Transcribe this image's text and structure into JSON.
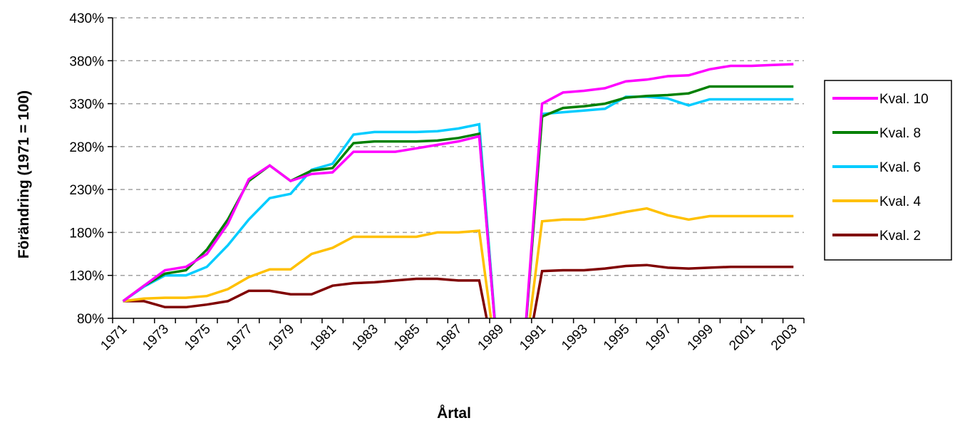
{
  "chart_data": {
    "type": "line",
    "xlabel": "Årtal",
    "ylabel": "Förändring (1971 = 100)",
    "ylim": [
      80,
      430
    ],
    "yticks": [
      "80%",
      "130%",
      "180%",
      "230%",
      "280%",
      "330%",
      "380%",
      "430%"
    ],
    "grid": "horizontal dashed",
    "legend": "right",
    "x": [
      1971,
      1972,
      1973,
      1974,
      1975,
      1976,
      1977,
      1978,
      1979,
      1980,
      1981,
      1982,
      1983,
      1984,
      1985,
      1986,
      1987,
      1988,
      1989,
      1990,
      1991,
      1992,
      1993,
      1994,
      1995,
      1996,
      1997,
      1998,
      1999,
      2000,
      2001,
      2002,
      2003
    ],
    "xticklabels": [
      "1971",
      "1973",
      "1975",
      "1977",
      "1979",
      "1981",
      "1983",
      "1985",
      "1987",
      "1989",
      "1991",
      "1993",
      "1995",
      "1997",
      "1999",
      "2001",
      "2003"
    ],
    "series": [
      {
        "name": "Kval. 10",
        "color": "#ff00ff",
        "values": [
          100,
          118,
          136,
          140,
          155,
          190,
          242,
          258,
          240,
          248,
          250,
          274,
          274,
          274,
          278,
          282,
          286,
          292,
          0,
          0,
          330,
          343,
          345,
          348,
          356,
          358,
          362,
          363,
          370,
          374,
          374,
          375,
          376
        ]
      },
      {
        "name": "Kval. 8",
        "color": "#008000",
        "values": [
          100,
          118,
          132,
          136,
          160,
          195,
          240,
          258,
          240,
          252,
          255,
          284,
          286,
          286,
          286,
          287,
          290,
          295,
          0,
          0,
          315,
          325,
          327,
          330,
          337,
          339,
          340,
          342,
          350,
          350,
          350,
          350,
          350
        ]
      },
      {
        "name": "Kval. 6",
        "color": "#00ccff",
        "values": [
          100,
          117,
          130,
          130,
          140,
          165,
          195,
          220,
          225,
          253,
          260,
          294,
          297,
          297,
          297,
          298,
          301,
          306,
          0,
          0,
          318,
          320,
          322,
          324,
          338,
          338,
          336,
          328,
          335,
          335,
          335,
          335,
          335
        ]
      },
      {
        "name": "Kval. 4",
        "color": "#ffc000",
        "values": [
          100,
          103,
          104,
          104,
          106,
          114,
          128,
          137,
          137,
          155,
          162,
          175,
          175,
          175,
          175,
          180,
          180,
          182,
          0,
          0,
          193,
          195,
          195,
          199,
          204,
          208,
          200,
          195,
          199,
          199,
          199,
          199,
          199
        ]
      },
      {
        "name": "Kval. 2",
        "color": "#800000",
        "values": [
          100,
          100,
          93,
          93,
          96,
          100,
          112,
          112,
          108,
          108,
          118,
          121,
          122,
          124,
          126,
          126,
          124,
          124,
          0,
          0,
          135,
          136,
          136,
          138,
          141,
          142,
          139,
          138,
          139,
          140,
          140,
          140,
          140
        ]
      }
    ]
  }
}
